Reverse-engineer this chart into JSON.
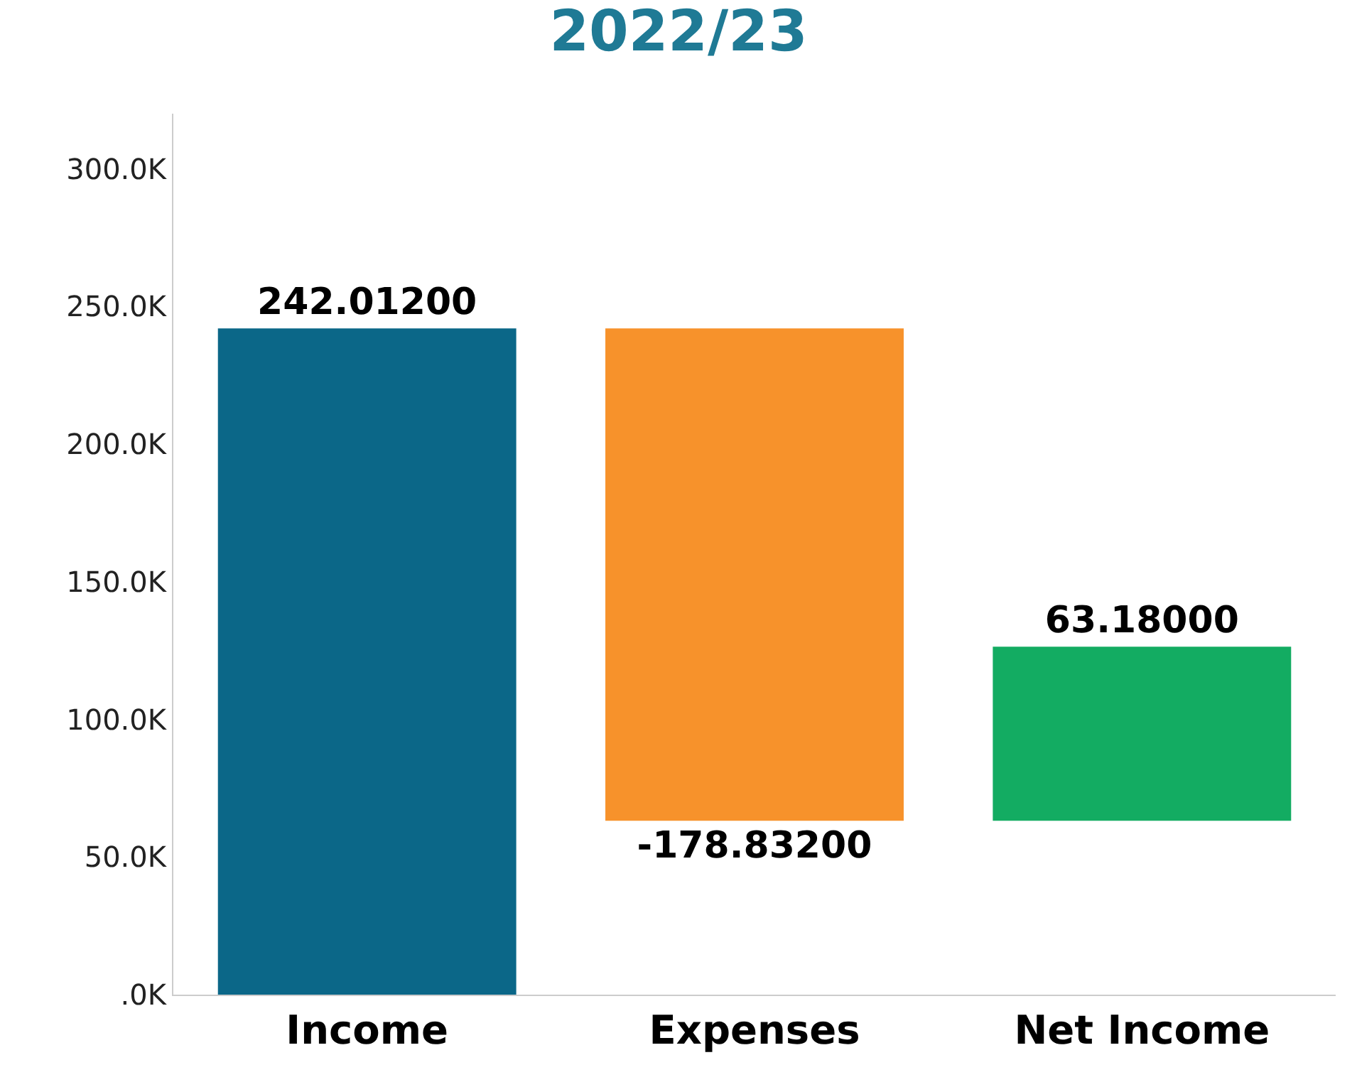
{
  "chart_data": {
    "type": "bar",
    "title": "2022/23",
    "categories": [
      "Income",
      "Expenses",
      "Net Income"
    ],
    "values": [
      242.012,
      -178.832,
      63.18
    ],
    "base": [
      0,
      242.012,
      63.18
    ],
    "colors": [
      "#0b6788",
      "#f7922b",
      "#13ac62"
    ],
    "value_labels": [
      "242.01200",
      "-178.83200",
      "63.18000"
    ],
    "ylim": [
      0,
      320
    ],
    "yticks": [
      {
        "value": 0,
        "label": ".0K"
      },
      {
        "value": 50,
        "label": "50.0K"
      },
      {
        "value": 100,
        "label": "100.0K"
      },
      {
        "value": 150,
        "label": "150.0K"
      },
      {
        "value": 200,
        "label": "200.0K"
      },
      {
        "value": 250,
        "label": "250.0K"
      },
      {
        "value": 300,
        "label": "300.0K"
      }
    ],
    "legend": false
  }
}
